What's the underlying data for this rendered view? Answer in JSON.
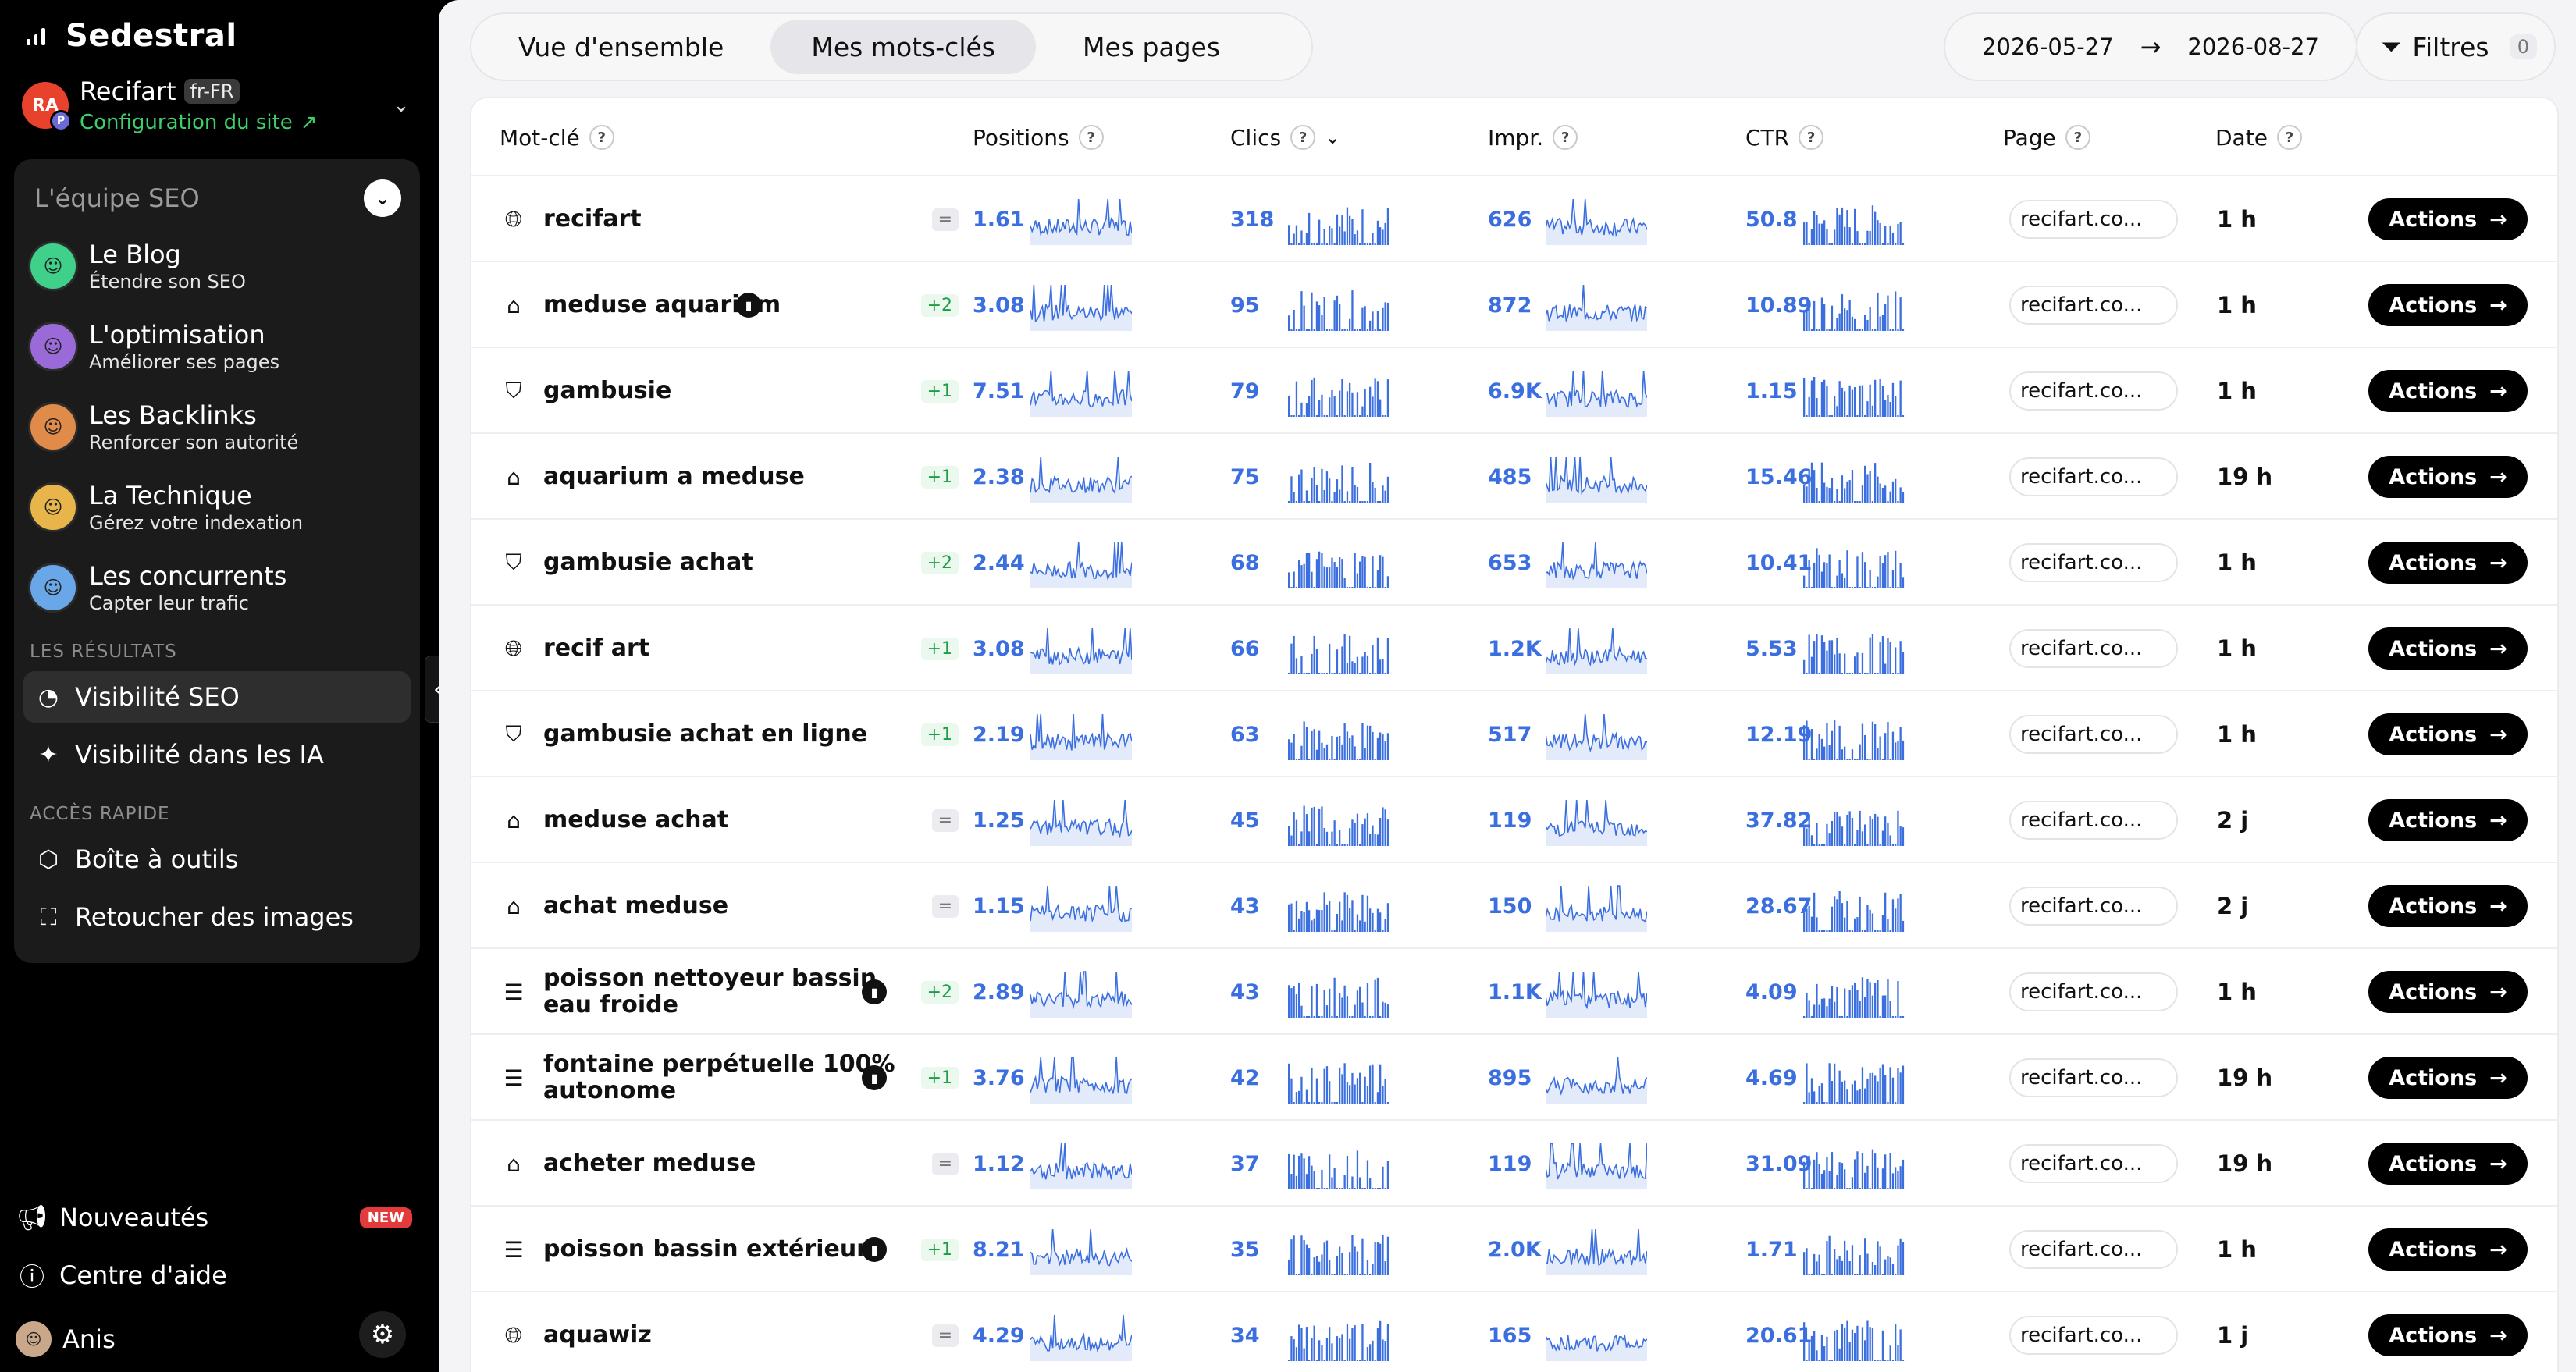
{
  "app": {
    "name": "Sedestral"
  },
  "site": {
    "avatar": "RA",
    "avatar_badge": "P",
    "name": "Recifart",
    "lang": "fr-FR",
    "config_label": "Configuration du site"
  },
  "team": {
    "title": "L'équipe SEO",
    "agents": [
      {
        "name": "Le Blog",
        "desc": "Étendre son SEO",
        "color": "#3fd08a"
      },
      {
        "name": "L'optimisation",
        "desc": "Améliorer ses pages",
        "color": "#9a6bd8"
      },
      {
        "name": "Les Backlinks",
        "desc": "Renforcer son autorité",
        "color": "#e08b4a"
      },
      {
        "name": "La Technique",
        "desc": "Gérez votre indexation",
        "color": "#e8b54a"
      },
      {
        "name": "Les concurrents",
        "desc": "Capter leur trafic",
        "color": "#6aa7e8"
      }
    ],
    "results_section": "LES RÉSULTATS",
    "results": [
      {
        "label": "Visibilité SEO",
        "icon": "pie-chart-icon",
        "active": true
      },
      {
        "label": "Visibilité dans les IA",
        "icon": "sparkles-icon",
        "active": false
      }
    ],
    "quick_section": "ACCÈS RAPIDE",
    "quick": [
      {
        "label": "Boîte à outils",
        "icon": "cube-icon"
      },
      {
        "label": "Retoucher des images",
        "icon": "image-scan-icon"
      }
    ]
  },
  "bottom": {
    "news": "Nouveautés",
    "news_badge": "NEW",
    "help": "Centre d'aide",
    "user": "Anis"
  },
  "tabs": [
    "Vue d'ensemble",
    "Mes mots-clés",
    "Mes pages"
  ],
  "active_tab": 1,
  "date_range": {
    "from": "2026-05-27",
    "to": "2026-08-27"
  },
  "filters": {
    "label": "Filtres",
    "count": "0"
  },
  "columns": {
    "keyword": "Mot-clé",
    "positions": "Positions",
    "clicks": "Clics",
    "impressions": "Impr.",
    "ctr": "CTR",
    "page": "Page",
    "date": "Date"
  },
  "help_mark": "?",
  "actions_label": "Actions",
  "rows": [
    {
      "icon": "globe-icon",
      "keyword": "recifart",
      "badge": false,
      "delta": "=",
      "position": "1.61",
      "clicks": "318",
      "impressions": "626",
      "ctr": "50.8",
      "page": "recifart.co...",
      "date": "1 h"
    },
    {
      "icon": "store-icon",
      "keyword": "meduse aquarium",
      "badge": true,
      "delta": "+2",
      "position": "3.08",
      "clicks": "95",
      "impressions": "872",
      "ctr": "10.89",
      "page": "recifart.co...",
      "date": "1 h"
    },
    {
      "icon": "bag-icon",
      "keyword": "gambusie",
      "badge": false,
      "delta": "+1",
      "position": "7.51",
      "clicks": "79",
      "impressions": "6.9K",
      "ctr": "1.15",
      "page": "recifart.co...",
      "date": "1 h"
    },
    {
      "icon": "store-icon",
      "keyword": "aquarium a meduse",
      "badge": false,
      "delta": "+1",
      "position": "2.38",
      "clicks": "75",
      "impressions": "485",
      "ctr": "15.46",
      "page": "recifart.co...",
      "date": "19 h"
    },
    {
      "icon": "bag-icon",
      "keyword": "gambusie achat",
      "badge": false,
      "delta": "+2",
      "position": "2.44",
      "clicks": "68",
      "impressions": "653",
      "ctr": "10.41",
      "page": "recifart.co...",
      "date": "1 h"
    },
    {
      "icon": "globe-icon",
      "keyword": "recif art",
      "badge": false,
      "delta": "+1",
      "position": "3.08",
      "clicks": "66",
      "impressions": "1.2K",
      "ctr": "5.53",
      "page": "recifart.co...",
      "date": "1 h"
    },
    {
      "icon": "bag-icon",
      "keyword": "gambusie achat en ligne",
      "badge": false,
      "delta": "+1",
      "position": "2.19",
      "clicks": "63",
      "impressions": "517",
      "ctr": "12.19",
      "page": "recifart.co...",
      "date": "1 h"
    },
    {
      "icon": "store-icon",
      "keyword": "meduse achat",
      "badge": false,
      "delta": "=",
      "position": "1.25",
      "clicks": "45",
      "impressions": "119",
      "ctr": "37.82",
      "page": "recifart.co...",
      "date": "2 j"
    },
    {
      "icon": "store-icon",
      "keyword": "achat meduse",
      "badge": false,
      "delta": "=",
      "position": "1.15",
      "clicks": "43",
      "impressions": "150",
      "ctr": "28.67",
      "page": "recifart.co...",
      "date": "2 j"
    },
    {
      "icon": "article-icon",
      "keyword": "poisson nettoyeur bassin eau froide",
      "badge": true,
      "delta": "+2",
      "position": "2.89",
      "clicks": "43",
      "impressions": "1.1K",
      "ctr": "4.09",
      "page": "recifart.co...",
      "date": "1 h"
    },
    {
      "icon": "article-icon",
      "keyword": "fontaine perpétuelle 100% autonome",
      "badge": true,
      "delta": "+1",
      "position": "3.76",
      "clicks": "42",
      "impressions": "895",
      "ctr": "4.69",
      "page": "recifart.co...",
      "date": "19 h"
    },
    {
      "icon": "store-icon",
      "keyword": "acheter meduse",
      "badge": false,
      "delta": "=",
      "position": "1.12",
      "clicks": "37",
      "impressions": "119",
      "ctr": "31.09",
      "page": "recifart.co...",
      "date": "19 h"
    },
    {
      "icon": "article-icon",
      "keyword": "poisson bassin extérieur",
      "badge": true,
      "delta": "+1",
      "position": "8.21",
      "clicks": "35",
      "impressions": "2.0K",
      "ctr": "1.71",
      "page": "recifart.co...",
      "date": "1 h"
    },
    {
      "icon": "globe-icon",
      "keyword": "aquawiz",
      "badge": false,
      "delta": "=",
      "position": "4.29",
      "clicks": "34",
      "impressions": "165",
      "ctr": "20.61",
      "page": "recifart.co...",
      "date": "1 j"
    }
  ],
  "colors": {
    "accent": "#3b6fe0",
    "positive": "#1f9d46",
    "config": "#3ecf6d"
  }
}
